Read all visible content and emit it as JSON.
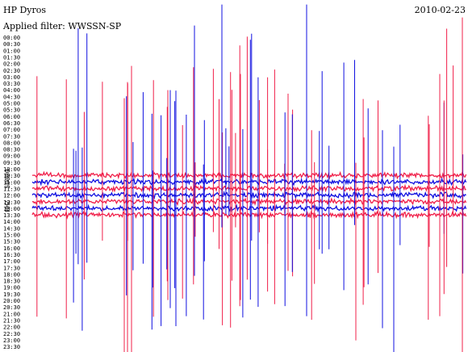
{
  "header": {
    "station": "HP Dyros",
    "filter": "Applied filter: WWSSN-SP",
    "date": "2010-02-23"
  },
  "axis": {
    "scale_label": "HHZ - 50000",
    "hour_labels": [
      "00:00",
      "00:30",
      "01:00",
      "01:30",
      "02:00",
      "02:30",
      "03:00",
      "03:30",
      "04:00",
      "04:30",
      "05:00",
      "05:30",
      "06:00",
      "06:30",
      "07:00",
      "07:30",
      "08:00",
      "08:30",
      "09:00",
      "09:30",
      "10:00",
      "10:30",
      "11:00",
      "11:30",
      "12:00",
      "12:30",
      "13:00",
      "13:30",
      "14:00",
      "14:30",
      "15:00",
      "15:30",
      "16:00",
      "16:30",
      "17:00",
      "17:30",
      "18:00",
      "18:30",
      "19:00",
      "19:30",
      "20:00",
      "20:30",
      "21:00",
      "21:30",
      "22:00",
      "22:30",
      "23:00",
      "23:30"
    ]
  },
  "colors": {
    "trace_a": "#1010e0",
    "trace_b": "#f0204a",
    "text": "#000000"
  },
  "active_rows": {
    "first": "10:30",
    "last": "13:30"
  }
}
